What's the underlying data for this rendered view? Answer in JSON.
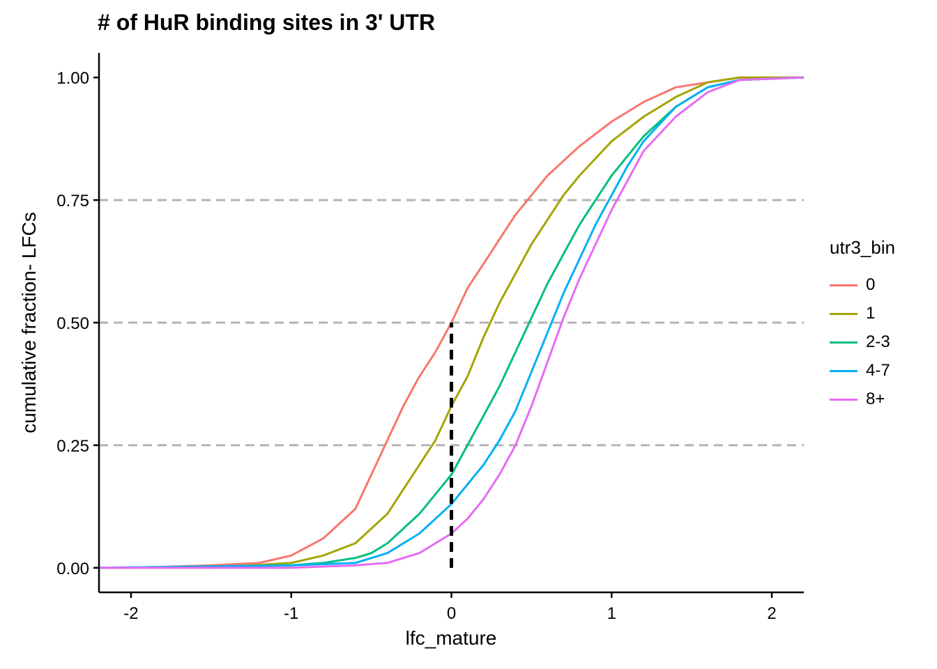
{
  "chart_data": {
    "type": "line",
    "title": "# of HuR binding sites in 3' UTR",
    "xlabel": "lfc_mature",
    "ylabel": "cumulative fraction- LFCs",
    "xlim": [
      -2.2,
      2.2
    ],
    "ylim": [
      -0.05,
      1.05
    ],
    "x_ticks": [
      "-2",
      "-1",
      "0",
      "1",
      "2"
    ],
    "y_ticks": [
      "0.00",
      "0.25",
      "0.50",
      "0.75",
      "1.00"
    ],
    "hlines": [
      0.25,
      0.5,
      0.75
    ],
    "vline": {
      "x": 0,
      "y_from": 0,
      "y_to": 0.5
    },
    "grid": false,
    "legend_position": "right",
    "legend_title": "utr3_bin",
    "series": [
      {
        "name": "0",
        "color": "#F8766D",
        "x": [
          -2.2,
          -2.0,
          -1.5,
          -1.2,
          -1.0,
          -0.8,
          -0.6,
          -0.5,
          -0.4,
          -0.3,
          -0.2,
          -0.1,
          0.0,
          0.1,
          0.2,
          0.3,
          0.4,
          0.5,
          0.6,
          0.8,
          1.0,
          1.2,
          1.4,
          1.6,
          1.8,
          2.2
        ],
        "y": [
          0.0,
          0.0,
          0.005,
          0.01,
          0.025,
          0.06,
          0.12,
          0.19,
          0.26,
          0.33,
          0.39,
          0.44,
          0.5,
          0.57,
          0.62,
          0.67,
          0.72,
          0.76,
          0.8,
          0.86,
          0.91,
          0.95,
          0.98,
          0.99,
          1.0,
          1.0
        ]
      },
      {
        "name": "1",
        "color": "#A3A500",
        "x": [
          -2.2,
          -1.5,
          -1.0,
          -0.8,
          -0.6,
          -0.5,
          -0.4,
          -0.3,
          -0.2,
          -0.1,
          0.0,
          0.1,
          0.2,
          0.3,
          0.4,
          0.5,
          0.6,
          0.7,
          0.8,
          1.0,
          1.2,
          1.4,
          1.6,
          1.8,
          2.2
        ],
        "y": [
          0.0,
          0.0,
          0.01,
          0.025,
          0.05,
          0.08,
          0.11,
          0.16,
          0.21,
          0.26,
          0.33,
          0.39,
          0.47,
          0.54,
          0.6,
          0.66,
          0.71,
          0.76,
          0.8,
          0.87,
          0.92,
          0.96,
          0.99,
          1.0,
          1.0
        ]
      },
      {
        "name": "2-3",
        "color": "#00BF7D",
        "x": [
          -2.2,
          -1.0,
          -0.8,
          -0.6,
          -0.5,
          -0.4,
          -0.3,
          -0.2,
          -0.1,
          0.0,
          0.1,
          0.2,
          0.3,
          0.4,
          0.5,
          0.6,
          0.7,
          0.8,
          0.9,
          1.0,
          1.2,
          1.4,
          1.6,
          1.8,
          2.2
        ],
        "y": [
          0.0,
          0.005,
          0.01,
          0.02,
          0.03,
          0.05,
          0.08,
          0.11,
          0.15,
          0.19,
          0.25,
          0.31,
          0.37,
          0.44,
          0.51,
          0.58,
          0.64,
          0.7,
          0.75,
          0.8,
          0.88,
          0.94,
          0.98,
          0.995,
          1.0
        ]
      },
      {
        "name": "4-7",
        "color": "#00B0F6",
        "x": [
          -2.2,
          -1.0,
          -0.6,
          -0.4,
          -0.3,
          -0.2,
          -0.1,
          0.0,
          0.1,
          0.2,
          0.3,
          0.4,
          0.5,
          0.6,
          0.7,
          0.8,
          0.9,
          1.0,
          1.1,
          1.2,
          1.4,
          1.6,
          1.8,
          2.2
        ],
        "y": [
          0.0,
          0.005,
          0.01,
          0.03,
          0.05,
          0.07,
          0.1,
          0.13,
          0.17,
          0.21,
          0.26,
          0.32,
          0.4,
          0.48,
          0.56,
          0.63,
          0.7,
          0.76,
          0.82,
          0.87,
          0.94,
          0.98,
          0.995,
          1.0
        ]
      },
      {
        "name": "8+",
        "color": "#E76BF3",
        "x": [
          -2.2,
          -1.0,
          -0.6,
          -0.4,
          -0.3,
          -0.2,
          -0.1,
          0.0,
          0.1,
          0.2,
          0.3,
          0.4,
          0.5,
          0.6,
          0.7,
          0.8,
          0.9,
          1.0,
          1.1,
          1.2,
          1.4,
          1.6,
          1.8,
          2.2
        ],
        "y": [
          0.0,
          0.0,
          0.005,
          0.01,
          0.02,
          0.03,
          0.05,
          0.07,
          0.1,
          0.14,
          0.19,
          0.25,
          0.33,
          0.42,
          0.51,
          0.59,
          0.66,
          0.73,
          0.79,
          0.85,
          0.92,
          0.97,
          0.995,
          1.0
        ]
      }
    ]
  }
}
